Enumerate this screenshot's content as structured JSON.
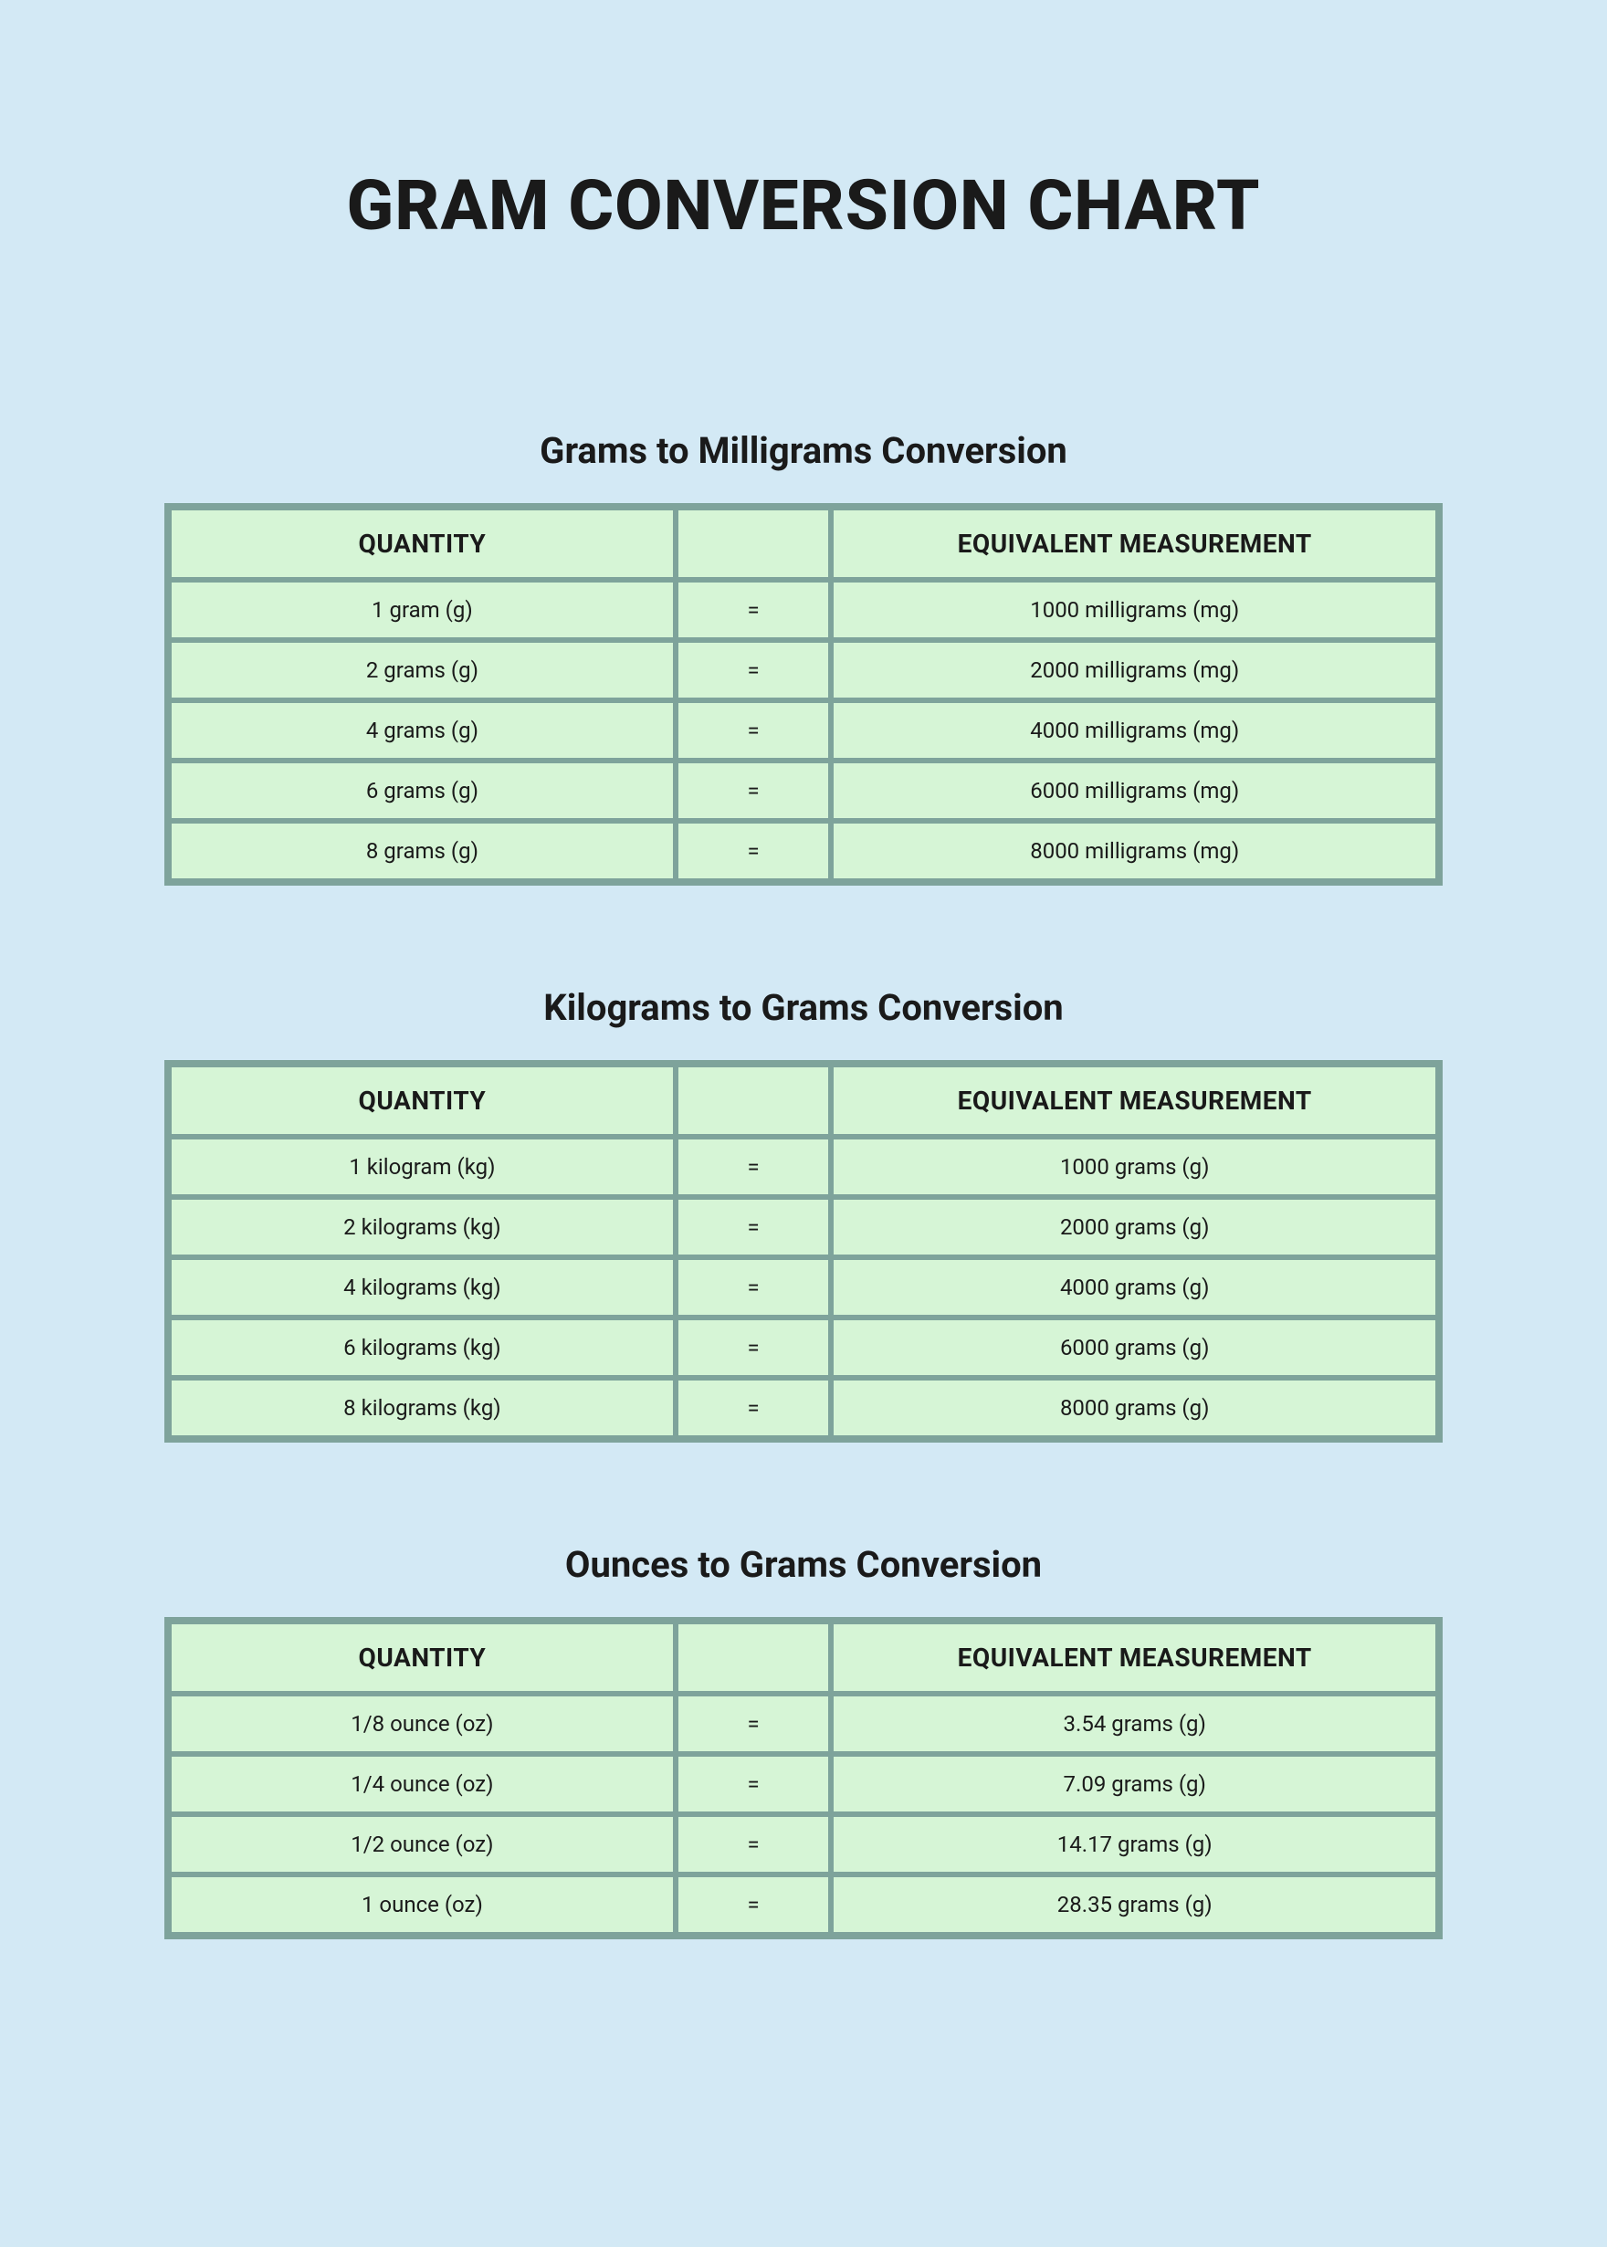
{
  "page": {
    "title": "GRAM CONVERSION CHART",
    "background_color": "#d3e9f5",
    "table_border_color": "#7ea39b",
    "cell_background_color": "#d6f5d6",
    "text_color": "#1a1a1a",
    "title_fontsize_pt": 57,
    "section_title_fontsize_pt": 30,
    "header_fontsize_pt": 21,
    "cell_fontsize_pt": 18
  },
  "headers": {
    "quantity": "QUANTITY",
    "equals": "",
    "equivalent": "EQUIVALENT MEASUREMENT"
  },
  "equals_symbol": "=",
  "sections": [
    {
      "title": "Grams to Milligrams Conversion",
      "rows": [
        {
          "quantity": "1 gram (g)",
          "equivalent": "1000 milligrams (mg)"
        },
        {
          "quantity": "2 grams (g)",
          "equivalent": "2000 milligrams (mg)"
        },
        {
          "quantity": "4 grams (g)",
          "equivalent": "4000 milligrams (mg)"
        },
        {
          "quantity": "6 grams (g)",
          "equivalent": "6000 milligrams (mg)"
        },
        {
          "quantity": "8 grams (g)",
          "equivalent": "8000 milligrams (mg)"
        }
      ]
    },
    {
      "title": "Kilograms to Grams Conversion",
      "rows": [
        {
          "quantity": "1 kilogram (kg)",
          "equivalent": "1000 grams (g)"
        },
        {
          "quantity": "2 kilograms (kg)",
          "equivalent": "2000 grams (g)"
        },
        {
          "quantity": "4 kilograms (kg)",
          "equivalent": "4000 grams (g)"
        },
        {
          "quantity": "6 kilograms (kg)",
          "equivalent": "6000 grams (g)"
        },
        {
          "quantity": "8 kilograms (kg)",
          "equivalent": "8000 grams (g)"
        }
      ]
    },
    {
      "title": "Ounces to Grams Conversion",
      "rows": [
        {
          "quantity": "1/8 ounce (oz)",
          "equivalent": "3.54 grams (g)"
        },
        {
          "quantity": "1/4 ounce (oz)",
          "equivalent": "7.09 grams (g)"
        },
        {
          "quantity": "1/2 ounce (oz)",
          "equivalent": "14.17 grams (g)"
        },
        {
          "quantity": "1 ounce (oz)",
          "equivalent": "28.35 grams (g)"
        }
      ]
    }
  ]
}
